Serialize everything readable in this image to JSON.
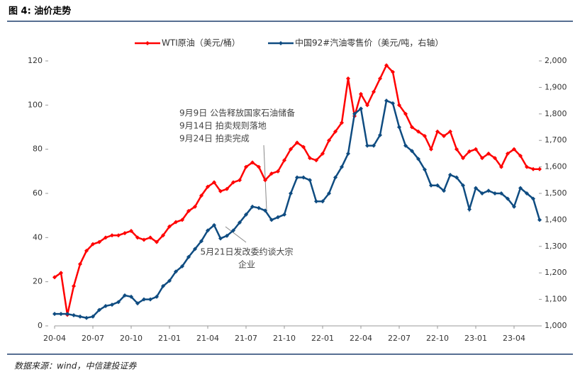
{
  "chart_data": {
    "type": "line",
    "title": "图 4:  油价走势",
    "source": "数据来源：wind，中信建投证券",
    "categories": [
      "20-04",
      null,
      null,
      null,
      null,
      null,
      "20-07",
      null,
      null,
      null,
      null,
      null,
      "20-10",
      null,
      null,
      null,
      null,
      null,
      "21-01",
      null,
      null,
      null,
      null,
      null,
      "21-04",
      null,
      null,
      null,
      null,
      null,
      "21-07",
      null,
      null,
      null,
      null,
      null,
      "21-10",
      null,
      null,
      null,
      null,
      null,
      "22-01",
      null,
      null,
      null,
      null,
      null,
      "22-04",
      null,
      null,
      null,
      null,
      null,
      "22-07",
      null,
      null,
      null,
      null,
      null,
      "22-10",
      null,
      null,
      null,
      null,
      null,
      "23-01",
      null,
      null,
      null,
      null,
      null,
      "23-04",
      null,
      null,
      null,
      null
    ],
    "series": [
      {
        "name": "WTI原油（美元/桶）",
        "color": "#ff0000",
        "axis": "y",
        "values": [
          22,
          24,
          5,
          18,
          28,
          34,
          37,
          38,
          40,
          41,
          41,
          42,
          43,
          40,
          39,
          40,
          38,
          41,
          45,
          47,
          48,
          52,
          54,
          59,
          63,
          65,
          61,
          62,
          65,
          66,
          72,
          74,
          72,
          66,
          69,
          70,
          75,
          80,
          83,
          81,
          76,
          75,
          78,
          84,
          88,
          92,
          112,
          95,
          105,
          100,
          106,
          112,
          118,
          115,
          100,
          96,
          90,
          88,
          86,
          80,
          88,
          86,
          88,
          80,
          76,
          79,
          80,
          76,
          78,
          76,
          72,
          78,
          80,
          77,
          72,
          71,
          71
        ]
      },
      {
        "name": "中国92#汽油零售价（美元/吨，右轴）",
        "color": "#0f4c81",
        "axis": "y2",
        "values": [
          1045,
          1045,
          1045,
          1040,
          1035,
          1030,
          1035,
          1060,
          1075,
          1080,
          1090,
          1115,
          1110,
          1085,
          1100,
          1100,
          1110,
          1150,
          1170,
          1205,
          1225,
          1260,
          1290,
          1320,
          1360,
          1380,
          1330,
          1340,
          1360,
          1390,
          1420,
          1450,
          1445,
          1435,
          1400,
          1410,
          1420,
          1500,
          1560,
          1560,
          1550,
          1470,
          1470,
          1500,
          1560,
          1600,
          1650,
          1800,
          1820,
          1680,
          1680,
          1720,
          1850,
          1840,
          1750,
          1680,
          1660,
          1630,
          1590,
          1530,
          1530,
          1510,
          1570,
          1560,
          1530,
          1440,
          1520,
          1500,
          1510,
          1500,
          1500,
          1480,
          1450,
          1520,
          1500,
          1480,
          1400
        ]
      }
    ],
    "ylim": [
      0,
      120
    ],
    "yticks": [
      0,
      20,
      40,
      60,
      80,
      100,
      120
    ],
    "y2lim": [
      1000,
      2000
    ],
    "y2ticks": [
      {
        "value": 1000,
        "label": "1,000"
      },
      {
        "value": 1100,
        "label": "1,100"
      },
      {
        "value": 1200,
        "label": "1,200"
      },
      {
        "value": 1300,
        "label": "1,300"
      },
      {
        "value": 1400,
        "label": "1,400"
      },
      {
        "value": 1500,
        "label": "1,500"
      },
      {
        "value": 1600,
        "label": "1,600"
      },
      {
        "value": 1700,
        "label": "1,700"
      },
      {
        "value": 1800,
        "label": "1,800"
      },
      {
        "value": 1900,
        "label": "1,900"
      },
      {
        "value": 2000,
        "label": "2,000"
      }
    ],
    "annotations": [
      {
        "lines": [
          "9月9日 公告释放国家石油储备",
          "9月14日 拍卖规则落地",
          "9月24日 拍卖完成"
        ]
      },
      {
        "lines": [
          "5月21日发改委约谈大宗",
          "企业"
        ]
      }
    ]
  }
}
